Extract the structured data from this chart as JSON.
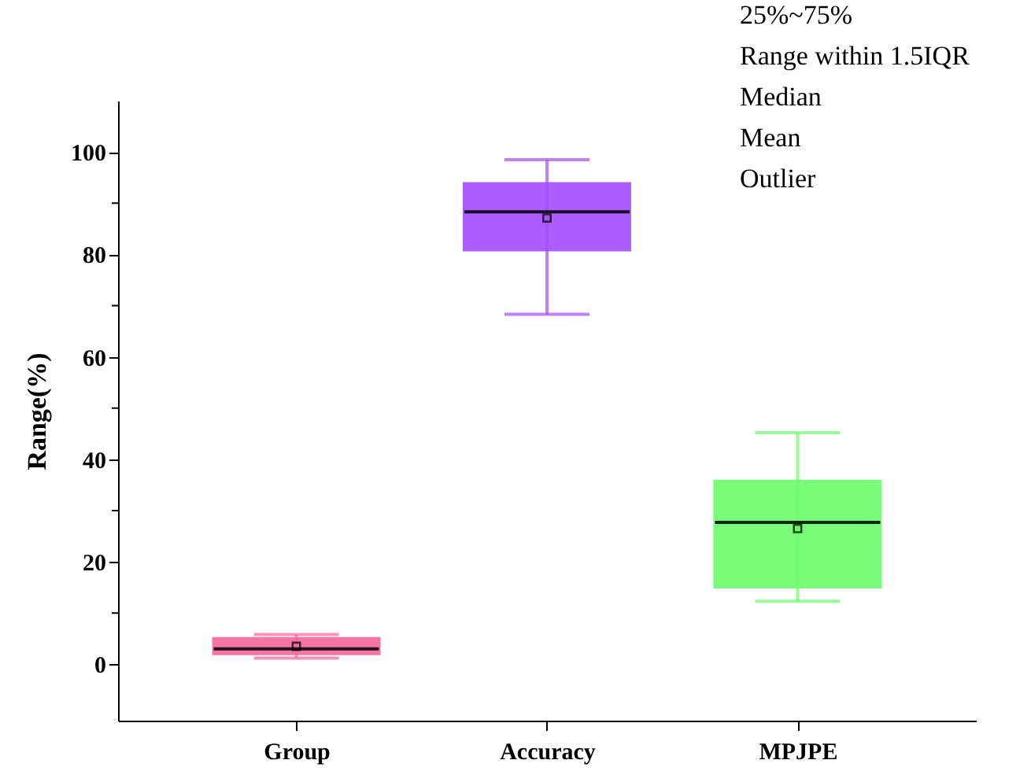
{
  "chart_data": {
    "type": "box",
    "ylabel": "Range(%)",
    "categories": [
      "Group",
      "Accuracy",
      "MPJPE"
    ],
    "boxes": [
      {
        "low": 1.2,
        "q1": 2.1,
        "median": 3.0,
        "q3": 5.0,
        "high": 5.8,
        "mean": 3.5
      },
      {
        "low": 68.3,
        "q1": 80.9,
        "median": 88.3,
        "q3": 93.8,
        "high": 98.5,
        "mean": 87.1
      },
      {
        "low": 12.3,
        "q1": 15.1,
        "median": 27.7,
        "q3": 35.7,
        "high": 45.2,
        "mean": 26.5
      }
    ],
    "colors": [
      "#f5679c",
      "#a34dfb",
      "#6cfc6c"
    ],
    "ylim": [
      -11,
      110
    ],
    "yticks": [
      0,
      {
        "value": 10,
        "label": null
      },
      20,
      {
        "value": 30,
        "label": null
      },
      40,
      {
        "value": 50,
        "label": null
      },
      60,
      {
        "value": 70,
        "label": null
      },
      80,
      {
        "value": 90,
        "label": null
      },
      100
    ],
    "grid": false,
    "annotations": [
      "25%~75%",
      "Range within 1.5IQR",
      "Median",
      "Mean",
      "Outlier"
    ]
  }
}
